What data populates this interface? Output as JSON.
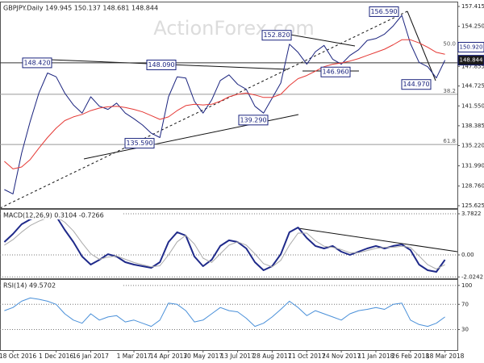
{
  "chart_data": [
    {
      "type": "line",
      "title": "GBPJPY.Daily 149.945 150.137 148.681 148.844",
      "watermark": "ActionForex.com",
      "categories": [
        null,
        "18 Oct 2016",
        null,
        null,
        null,
        null,
        "1 Dec 2016",
        null,
        null,
        null,
        "16 Jan 2017",
        null,
        null,
        null,
        null,
        "1 Mar 2017",
        null,
        null,
        null,
        "14 Apr 2017",
        null,
        null,
        null,
        "30 May 2017",
        null,
        null,
        null,
        "13 Jul 2017",
        null,
        null,
        null,
        "28 Aug 2017",
        null,
        null,
        null,
        "11 Oct 2017",
        null,
        null,
        null,
        "24 Nov 2017",
        null,
        null,
        null,
        "11 Jan 2018",
        null,
        null,
        null,
        "26 Feb 2018",
        null,
        null,
        null,
        "18 Mar 2018"
      ],
      "series": [
        {
          "color": "#1a237e",
          "values": [
            128.2,
            127.5,
            134.0,
            139.1,
            143.6,
            146.8,
            146.2,
            143.6,
            141.7,
            140.4,
            143.0,
            141.5,
            141.0,
            142.0,
            140.4,
            139.5,
            138.5,
            137.2,
            136.5,
            143.0,
            146.2,
            146.0,
            142.3,
            140.4,
            142.5,
            145.6,
            146.5,
            145.0,
            144.2,
            141.5,
            140.4,
            142.8,
            145.2,
            151.4,
            150.1,
            148.2,
            150.2,
            151.2,
            149.0,
            148.2,
            149.6,
            150.5,
            152.0,
            152.3,
            153.0,
            154.3,
            156.0,
            151.5,
            148.5,
            147.8,
            146.0,
            148.844
          ]
        },
        {
          "color": "#e53935",
          "values": [
            132.7,
            131.5,
            131.8,
            133.0,
            134.8,
            136.5,
            138.0,
            139.2,
            139.8,
            140.2,
            140.8,
            141.2,
            141.4,
            141.5,
            141.3,
            141.0,
            140.6,
            140.0,
            139.4,
            139.8,
            140.8,
            141.6,
            141.8,
            141.7,
            141.8,
            142.3,
            143.0,
            143.4,
            143.6,
            143.3,
            142.9,
            142.9,
            143.4,
            144.8,
            145.9,
            146.4,
            147.1,
            147.8,
            148.2,
            148.4,
            148.7,
            149.1,
            149.6,
            150.1,
            150.6,
            151.3,
            152.1,
            152.1,
            151.6,
            150.9,
            150.1,
            149.8
          ]
        }
      ],
      "ylim": [
        125.24,
        158.19
      ],
      "yticks": [
        157.415,
        {
          "value": 154.25,
          "label": "154.250"
        },
        147.855,
        144.725,
        {
          "value": 141.55,
          "label": "141.550"
        },
        138.385,
        {
          "value": 135.22,
          "label": "135.220"
        },
        {
          "value": 131.99,
          "label": "131.990"
        },
        {
          "value": 128.76,
          "label": "128.760"
        },
        125.625
      ],
      "price_labels": [
        {
          "label": "150.920",
          "value": 150.92,
          "color": "#ffffff"
        },
        {
          "label": "148.844",
          "value": 148.844,
          "color": "#1a1a1a"
        }
      ],
      "levels": [
        {
          "label": "50.0",
          "value": 150.92,
          "color": "#ffffff"
        },
        {
          "label": "38.2",
          "value": 143.4,
          "color": "#999999"
        },
        {
          "label": "61.8",
          "value": 135.4,
          "color": "#999999"
        }
      ],
      "support_line": {
        "value": 148.42,
        "color": "#333333"
      },
      "annotations": [
        {
          "label": "148.420",
          "value": 148.42
        },
        {
          "label": "148.090",
          "value": 148.09
        },
        {
          "label": "152.820",
          "value": 152.82
        },
        {
          "label": "156.590",
          "value": 156.59
        },
        {
          "label": "146.960",
          "value": 146.96
        },
        {
          "label": "144.970",
          "value": 144.97
        },
        {
          "label": "139.290",
          "value": 139.29
        },
        {
          "label": "135.590",
          "value": 135.59
        }
      ]
    },
    {
      "type": "line",
      "title": "MACD(12,26,9) 0.3104 -0.7266",
      "series": [
        {
          "color": "#1f2a8a",
          "width": 2,
          "values": [
            1.19,
            1.93,
            2.82,
            3.26,
            3.56,
            3.71,
            3.56,
            2.3,
            1.19,
            -0.15,
            -0.89,
            -0.45,
            0.07,
            -0.15,
            -0.67,
            -0.89,
            -1.04,
            -1.19,
            -0.67,
            1.19,
            2.08,
            1.78,
            -0.15,
            -1.04,
            -0.45,
            0.82,
            1.34,
            1.19,
            0.59,
            -0.67,
            -1.41,
            -1.04,
            0.07,
            2.08,
            2.52,
            1.56,
            0.82,
            0.59,
            0.82,
            0.3,
            0,
            0.3,
            0.59,
            0.82,
            0.59,
            0.82,
            0.96,
            0.45,
            -0.89,
            -1.41,
            -1.56,
            -0.45
          ]
        },
        {
          "color": "#aaaaaa",
          "width": 1,
          "values": [
            0.9,
            1.4,
            2.1,
            2.7,
            3.1,
            3.4,
            3.5,
            3.0,
            2.2,
            1.1,
            0.1,
            -0.4,
            -0.2,
            -0.1,
            -0.4,
            -0.7,
            -0.9,
            -1.1,
            -1.0,
            0.0,
            1.2,
            1.8,
            1.0,
            -0.3,
            -0.7,
            0.1,
            0.9,
            1.2,
            0.9,
            0.1,
            -0.8,
            -1.1,
            -0.5,
            0.9,
            2.0,
            2.0,
            1.3,
            0.8,
            0.7,
            0.5,
            0.2,
            0.2,
            0.4,
            0.6,
            0.7,
            0.7,
            0.8,
            0.7,
            -0.1,
            -0.9,
            -1.3,
            -0.9
          ]
        }
      ],
      "ylim": [
        -2.151,
        4.227
      ],
      "yticks": [
        3.7822,
        {
          "value": 0,
          "label": "0.00"
        },
        -2.0242
      ],
      "grid": "dotted"
    },
    {
      "type": "line",
      "title": "RSI(14) 49.5702",
      "series": [
        {
          "color": "#4a90d9",
          "width": 1,
          "values": [
            60,
            65,
            75,
            80,
            78,
            75,
            70,
            55,
            45,
            40,
            55,
            45,
            50,
            52,
            42,
            45,
            40,
            35,
            45,
            72,
            70,
            60,
            42,
            45,
            55,
            65,
            60,
            58,
            48,
            35,
            40,
            50,
            62,
            75,
            65,
            52,
            60,
            55,
            50,
            45,
            55,
            60,
            62,
            65,
            62,
            70,
            72,
            45,
            38,
            35,
            40,
            50
          ]
        }
      ],
      "ylim": [
        -2.6,
        110
      ],
      "yticks": [
        100,
        70,
        30
      ],
      "grid": "dotted"
    }
  ]
}
